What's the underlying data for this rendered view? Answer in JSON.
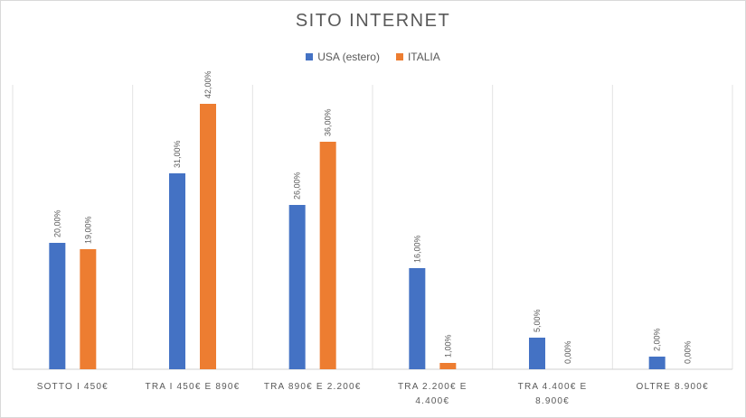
{
  "chart_data": {
    "type": "bar",
    "title": "SITO INTERNET",
    "categories": [
      [
        "SOTTO I 450€"
      ],
      [
        "TRA I 450€ E 890€"
      ],
      [
        "TRA 890€ E 2.200€"
      ],
      [
        "TRA 2.200€ E",
        "4.400€"
      ],
      [
        "TRA 4.400€ E",
        "8.900€"
      ],
      [
        "OLTRE 8.900€"
      ]
    ],
    "series": [
      {
        "name": "USA (estero)",
        "color": "#4472C4",
        "values": [
          20,
          31,
          26,
          16,
          5,
          2
        ],
        "labels": [
          "20,00%",
          "31,00%",
          "26,00%",
          "16,00%",
          "5,00%",
          "2,00%"
        ]
      },
      {
        "name": "ITALIA",
        "color": "#ED7D31",
        "values": [
          19,
          42,
          36,
          1,
          0,
          0
        ],
        "labels": [
          "19,00%",
          "42,00%",
          "36,00%",
          "1,00%",
          "0,00%",
          "0,00%"
        ]
      }
    ],
    "ylim": [
      0,
      45
    ],
    "legend_position": "top",
    "gridlines": "vertical category separators"
  }
}
